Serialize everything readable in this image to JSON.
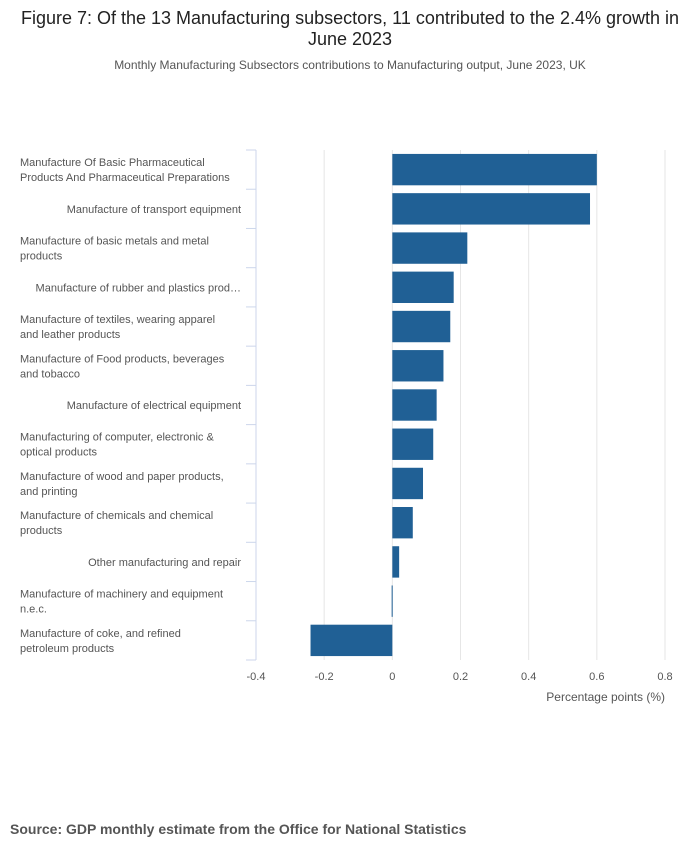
{
  "title": "Figure 7: Of the 13 Manufacturing subsectors, 11 contributed to the 2.4% growth in June 2023",
  "subtitle": "Monthly Manufacturing Subsectors contributions to Manufacturing output, June 2023, UK",
  "source": "Source: GDP monthly estimate from the Office for National Statistics",
  "colors": {
    "bar": "#206095",
    "grid": "#e6e6e6",
    "axis": "#ccd6eb",
    "label": "#555555"
  },
  "chart_data": {
    "type": "bar",
    "orientation": "horizontal",
    "categories": [
      [
        "Manufacture Of Basic Pharmaceutical",
        "Products And Pharmaceutical Preparations"
      ],
      [
        "Manufacture of transport equipment"
      ],
      [
        "Manufacture of basic metals and metal",
        "products"
      ],
      [
        "Manufacture of rubber and plastics prod…"
      ],
      [
        "Manufacture of textiles, wearing apparel",
        "and leather products"
      ],
      [
        "Manufacture of Food products, beverages",
        "and tobacco"
      ],
      [
        "Manufacture of electrical equipment"
      ],
      [
        "Manufacturing of computer, electronic &",
        "optical products"
      ],
      [
        "Manufacture of wood and paper products,",
        "and printing"
      ],
      [
        "Manufacture of chemicals and chemical",
        "products"
      ],
      [
        "Other manufacturing and repair"
      ],
      [
        "Manufacture of machinery and equipment",
        "n.e.c."
      ],
      [
        "Manufacture of coke, and refined",
        "petroleum products"
      ]
    ],
    "values": [
      0.6,
      0.58,
      0.22,
      0.18,
      0.17,
      0.15,
      0.13,
      0.12,
      0.09,
      0.06,
      0.02,
      -0.002,
      -0.24
    ],
    "xlabel": "Percentage points (%)",
    "xlim": [
      -0.4,
      0.8
    ],
    "xticks": [
      -0.4,
      -0.2,
      0,
      0.2,
      0.4,
      0.6,
      0.8
    ],
    "grid": true
  }
}
